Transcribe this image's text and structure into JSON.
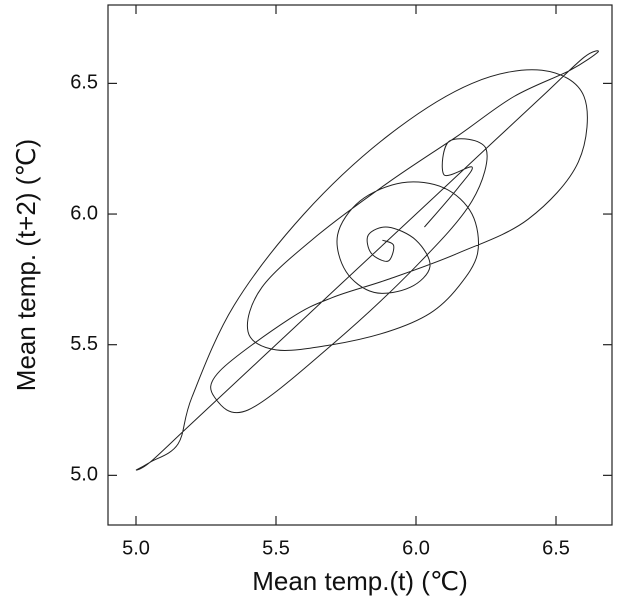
{
  "chart_data": {
    "type": "line",
    "x_label": "Mean temp.(t) (℃)",
    "y_label": "Mean temp. (t+2) (℃)",
    "xlim": [
      4.9,
      6.7
    ],
    "ylim": [
      4.81,
      6.8
    ],
    "xticks": [
      {
        "value": 5.0,
        "label": "5.0"
      },
      {
        "value": 5.5,
        "label": "5.5"
      },
      {
        "value": 6.0,
        "label": "6.0"
      },
      {
        "value": 6.5,
        "label": "6.5"
      }
    ],
    "yticks": [
      {
        "value": 5.0,
        "label": "5.0"
      },
      {
        "value": 5.5,
        "label": "5.5"
      },
      {
        "value": 6.0,
        "label": "6.0"
      },
      {
        "value": 6.5,
        "label": "6.5"
      }
    ],
    "grid": false,
    "series": [
      {
        "color": "#222222",
        "x": [
          5.88,
          5.92,
          5.9,
          5.84,
          5.83,
          5.9,
          6.0,
          6.05,
          5.98,
          5.85,
          5.75,
          5.72,
          5.8,
          5.95,
          6.1,
          6.2,
          6.22,
          6.15,
          6.05,
          5.9,
          5.7,
          5.5,
          5.4,
          5.45,
          5.65,
          5.9,
          6.15,
          6.35,
          6.55,
          6.65,
          6.6,
          6.45,
          6.2,
          5.95,
          5.7,
          5.45,
          5.2,
          5.05,
          5.0,
          5.05,
          5.15,
          5.2,
          5.35,
          5.6,
          5.9,
          6.2,
          6.45,
          6.6,
          6.58,
          6.4,
          6.15,
          5.9,
          5.7,
          5.55,
          5.3,
          5.28,
          5.4,
          5.7,
          6.0,
          6.2,
          6.25,
          6.12,
          6.1,
          6.2,
          6.15,
          6.03
        ],
        "values": [
          5.9,
          5.88,
          5.82,
          5.85,
          5.92,
          5.95,
          5.9,
          5.8,
          5.72,
          5.7,
          5.78,
          5.92,
          6.05,
          6.12,
          6.1,
          6.0,
          5.85,
          5.72,
          5.62,
          5.55,
          5.5,
          5.48,
          5.55,
          5.72,
          5.92,
          6.12,
          6.3,
          6.45,
          6.55,
          6.62,
          6.6,
          6.45,
          6.2,
          5.95,
          5.7,
          5.45,
          5.2,
          5.05,
          5.02,
          5.05,
          5.12,
          5.3,
          5.65,
          6.0,
          6.3,
          6.5,
          6.55,
          6.45,
          6.2,
          5.98,
          5.85,
          5.75,
          5.68,
          5.6,
          5.4,
          5.3,
          5.25,
          5.5,
          5.8,
          6.05,
          6.25,
          6.28,
          6.15,
          6.18,
          6.1,
          5.95
        ]
      }
    ]
  }
}
